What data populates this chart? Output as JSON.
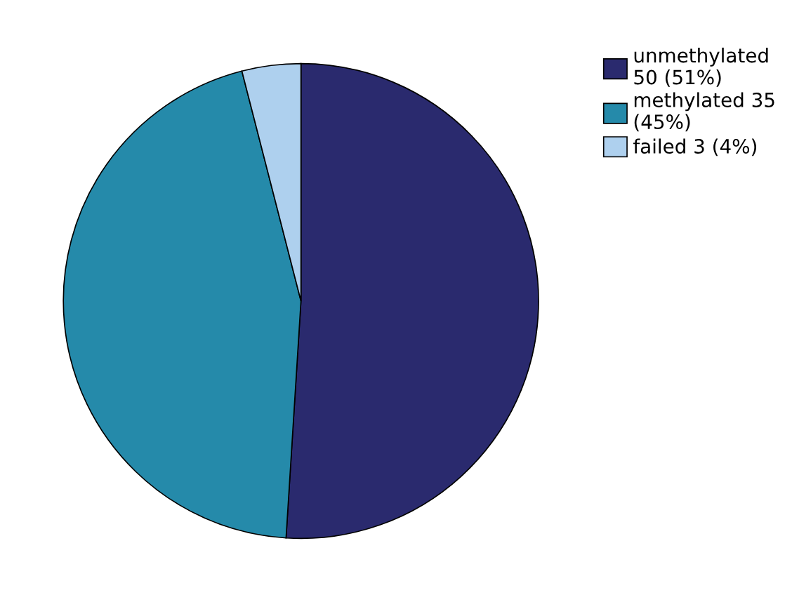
{
  "chart_data": {
    "type": "pie",
    "categories": [
      "unmethylated\n50 (51%)",
      "methylated 35\n(45%)",
      "failed 3 (4%)"
    ],
    "values": [
      51,
      45,
      4
    ],
    "colors": [
      "#2a2a6e",
      "#258aaa",
      "#aed0ee"
    ],
    "legend": "right"
  }
}
